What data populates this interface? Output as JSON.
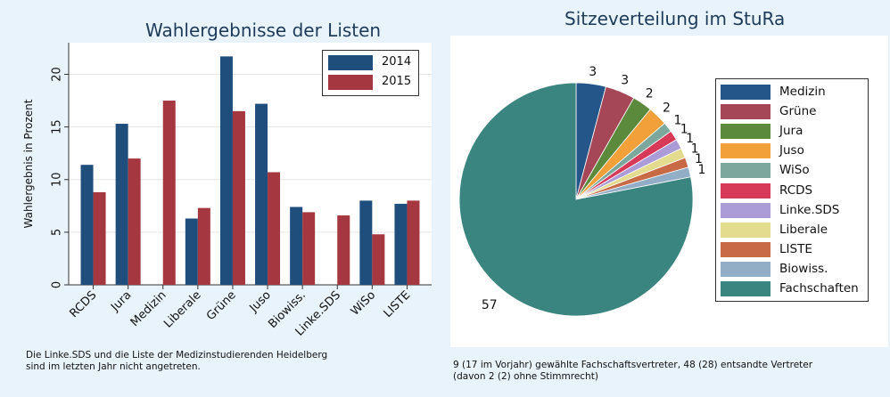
{
  "chart_data": [
    {
      "type": "bar",
      "title": "Wahlergebnisse der Listen",
      "ylabel": "Wahlergebnis in Prozent",
      "xlabel": "",
      "categories": [
        "RCDS",
        "Jura",
        "Medizin",
        "Liberale",
        "Grüne",
        "Juso",
        "Biowiss.",
        "Linke.SDS",
        "WiSo",
        "LISTE"
      ],
      "series": [
        {
          "name": "2014",
          "color": "#1f4e7d",
          "values": [
            11.4,
            15.3,
            null,
            6.3,
            21.7,
            17.2,
            7.4,
            null,
            8.0,
            7.7
          ]
        },
        {
          "name": "2015",
          "color": "#a4373f",
          "values": [
            8.8,
            12.0,
            17.5,
            7.3,
            16.5,
            10.7,
            6.9,
            6.6,
            4.8,
            8.0
          ]
        }
      ],
      "ylim": [
        0,
        23
      ],
      "yticks": [
        0,
        5,
        10,
        15,
        20
      ],
      "grid": true,
      "legend_position": "top-right",
      "note": "Die Linke.SDS und die Liste der Medizinstudierenden Heidelberg sind im letzten Jahr nicht angetreten."
    },
    {
      "type": "pie",
      "title": "Sitzeverteilung im StuRa",
      "slices": [
        {
          "label": "Medizin",
          "value": 3,
          "color": "#24568a"
        },
        {
          "label": "Grüne",
          "value": 3,
          "color": "#a64757"
        },
        {
          "label": "Jura",
          "value": 2,
          "color": "#5b8a3c"
        },
        {
          "label": "Juso",
          "value": 2,
          "color": "#f1a03a"
        },
        {
          "label": "WiSo",
          "value": 1,
          "color": "#7ba79c"
        },
        {
          "label": "RCDS",
          "value": 1,
          "color": "#d63a58"
        },
        {
          "label": "Linke.SDS",
          "value": 1,
          "color": "#ab9bd6"
        },
        {
          "label": "Liberale",
          "value": 1,
          "color": "#e3dc8e"
        },
        {
          "label": "LISTE",
          "value": 1,
          "color": "#c96a46"
        },
        {
          "label": "Biowiss.",
          "value": 1,
          "color": "#92aec7"
        },
        {
          "label": "Fachschaften",
          "value": 57,
          "color": "#3b8580"
        }
      ],
      "legend_position": "right",
      "note": "9 (17 im Vorjahr) gewählte Fachschaftsvertreter, 48 (28) entsandte Vertreter (davon 2 (2) ohne Stimmrecht)"
    }
  ]
}
